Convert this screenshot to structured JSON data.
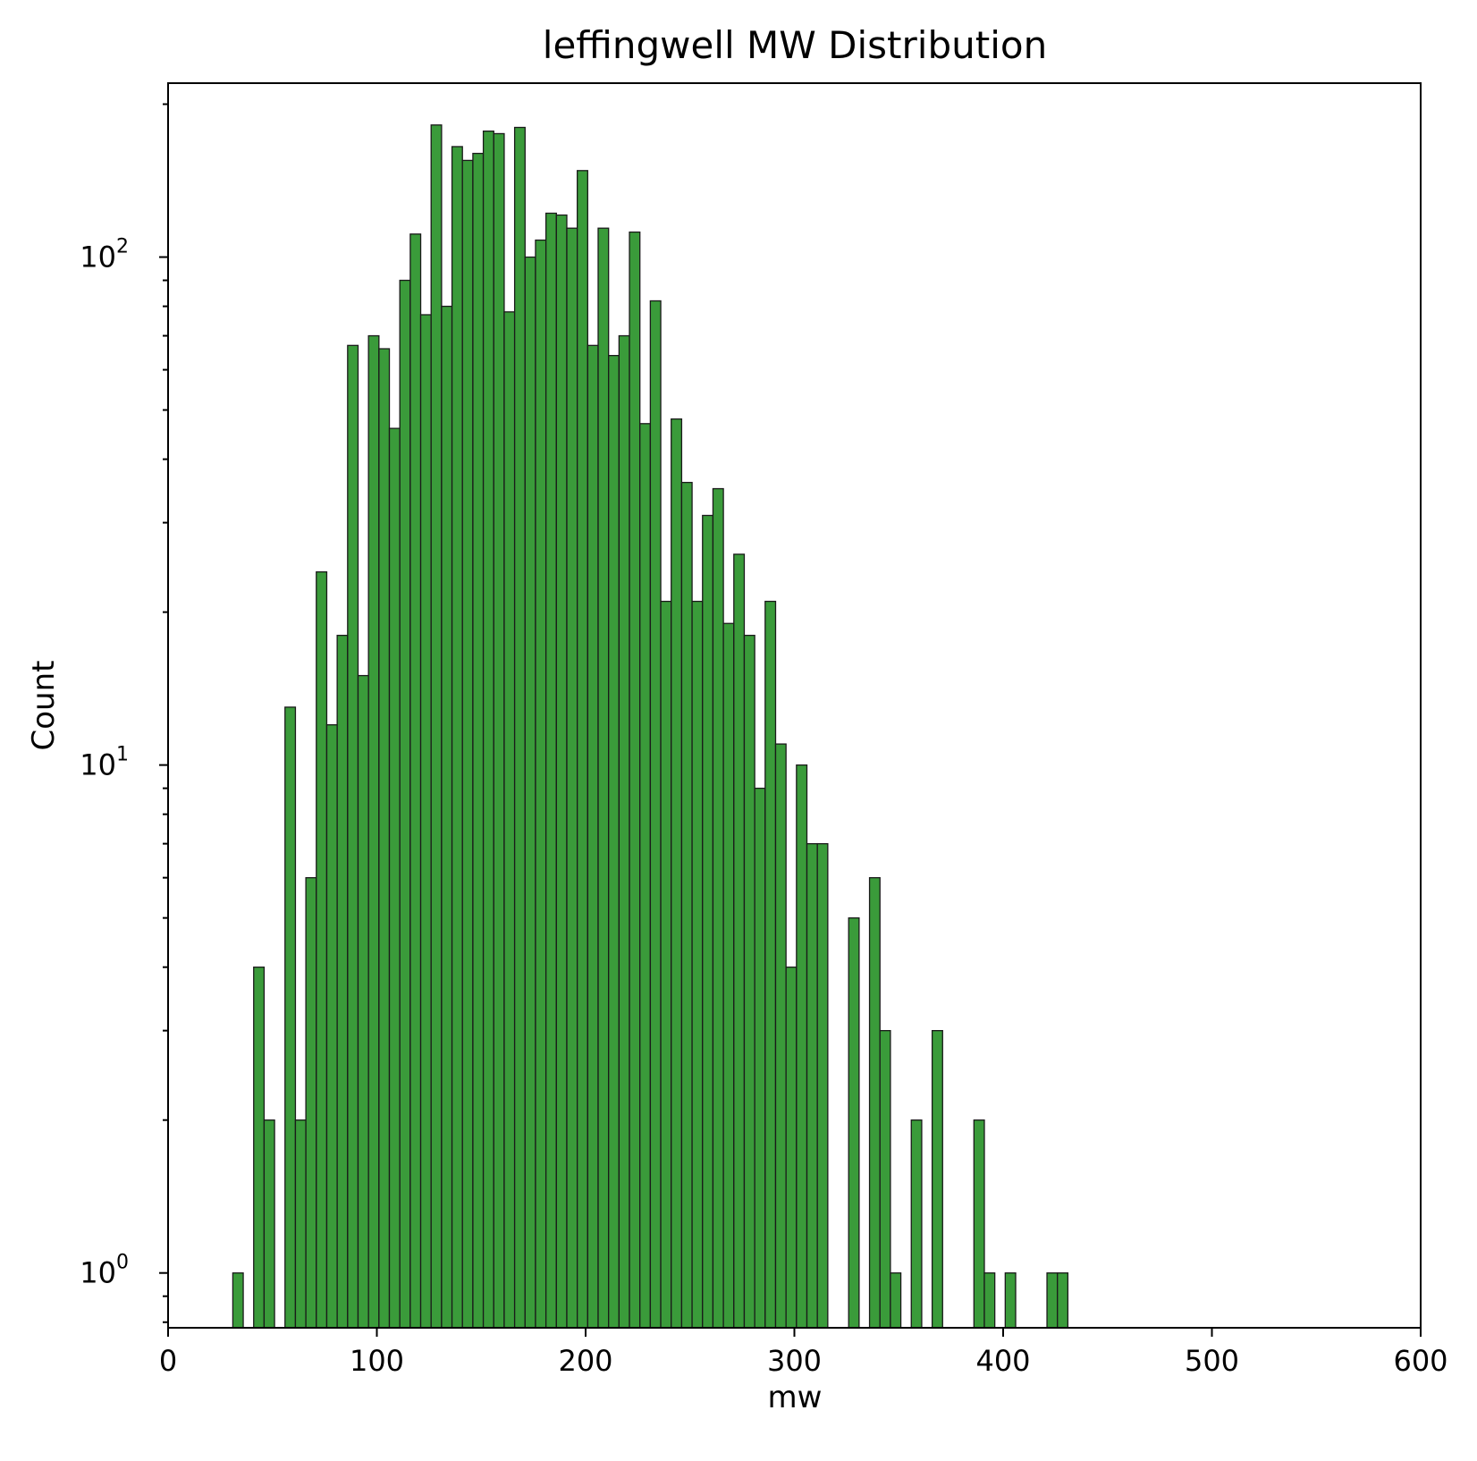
{
  "chart_data": {
    "type": "bar",
    "title": "leffingwell MW Distribution",
    "xlabel": "mw",
    "ylabel": "Count",
    "xlim": [
      0,
      600
    ],
    "ylim": [
      0.78,
      220
    ],
    "yscale": "log",
    "grid": false,
    "legend": "none",
    "bar_color": "#3a9b3a",
    "edge_color": "#1a1a1a",
    "bin_width": 5.0,
    "x_ticks": [
      "0",
      "100",
      "200",
      "300",
      "400",
      "500",
      "600"
    ],
    "x_tick_values": [
      0,
      100,
      200,
      300,
      400,
      500,
      600
    ],
    "y_ticks": [
      {
        "value": 1,
        "base": "10",
        "exp": "0"
      },
      {
        "value": 10,
        "base": "10",
        "exp": "1"
      },
      {
        "value": 100,
        "base": "10",
        "exp": "2"
      }
    ],
    "bins_left_edge": [
      31,
      41,
      46,
      56,
      61,
      66,
      71,
      76,
      81,
      86,
      91,
      96,
      101,
      106,
      111,
      116,
      121,
      126,
      131,
      136,
      141,
      146,
      151,
      156,
      161,
      166,
      171,
      176,
      181,
      186,
      191,
      196,
      201,
      206,
      211,
      216,
      221,
      226,
      231,
      236,
      241,
      246,
      251,
      256,
      261,
      266,
      271,
      276,
      281,
      286,
      291,
      296,
      301,
      306,
      311,
      326,
      336,
      341,
      346,
      356,
      366,
      386,
      391,
      401,
      421,
      426
    ],
    "counts": [
      1,
      4,
      2,
      13,
      2,
      6,
      24,
      12,
      18,
      67,
      15,
      70,
      66,
      46,
      90,
      111,
      77,
      182,
      80,
      165,
      155,
      160,
      177,
      175,
      78,
      180,
      100,
      108,
      122,
      121,
      114,
      148,
      67,
      114,
      64,
      70,
      112,
      47,
      82,
      21,
      48,
      36,
      21,
      31,
      35,
      19,
      26,
      18,
      9,
      21,
      11,
      4,
      10,
      7,
      7,
      5,
      6,
      3,
      1,
      2,
      3,
      2,
      1,
      1,
      1,
      1
    ]
  }
}
